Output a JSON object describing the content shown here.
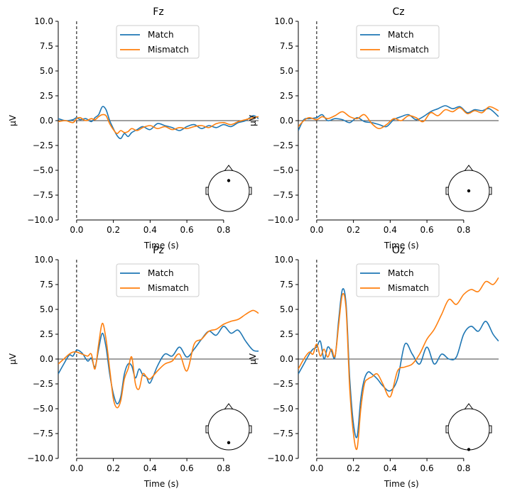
{
  "chart_data": [
    {
      "type": "line",
      "title": "Fz",
      "xlabel": "Time (s)",
      "ylabel": "µV",
      "xlim": [
        -0.1,
        0.99
      ],
      "ylim": [
        -10,
        10
      ],
      "xticks": [
        0.0,
        0.2,
        0.4,
        0.6,
        0.8
      ],
      "xtick_labels": [
        "0.0",
        "0.2",
        "0.4",
        "0.6",
        "0.8"
      ],
      "yticks": [
        10,
        7.5,
        5,
        2.5,
        0,
        -2.5,
        -5,
        -7.5,
        -10
      ],
      "ytick_labels": [
        "10.0",
        "7.5",
        "5.0",
        "2.5",
        "0.0",
        "−2.5",
        "−5.0",
        "−7.5",
        "−10.0"
      ],
      "legend_position": "top-center",
      "sensor_position": "front",
      "series": [
        {
          "name": "Match",
          "color": "#1f77b4",
          "x": [
            -0.1,
            -0.06,
            -0.02,
            0.0,
            0.02,
            0.05,
            0.08,
            0.1,
            0.12,
            0.14,
            0.16,
            0.18,
            0.2,
            0.22,
            0.24,
            0.26,
            0.28,
            0.3,
            0.33,
            0.36,
            0.4,
            0.44,
            0.48,
            0.52,
            0.56,
            0.6,
            0.64,
            0.68,
            0.72,
            0.76,
            0.8,
            0.84,
            0.88,
            0.92,
            0.96,
            0.99
          ],
          "y": [
            0.2,
            0.0,
            0.1,
            0.3,
            0.1,
            0.2,
            -0.1,
            0.3,
            0.6,
            1.4,
            1.1,
            0.0,
            -0.8,
            -1.5,
            -1.8,
            -1.3,
            -1.6,
            -1.2,
            -0.9,
            -0.6,
            -0.9,
            -0.3,
            -0.5,
            -0.7,
            -1.0,
            -0.6,
            -0.4,
            -0.8,
            -0.5,
            -0.7,
            -0.4,
            -0.6,
            -0.2,
            0.0,
            0.5,
            0.2
          ]
        },
        {
          "name": "Mismatch",
          "color": "#ff7f0e",
          "x": [
            -0.1,
            -0.06,
            -0.02,
            0.0,
            0.02,
            0.05,
            0.08,
            0.1,
            0.12,
            0.14,
            0.16,
            0.18,
            0.2,
            0.22,
            0.24,
            0.26,
            0.28,
            0.3,
            0.33,
            0.36,
            0.4,
            0.44,
            0.48,
            0.52,
            0.56,
            0.6,
            0.64,
            0.68,
            0.72,
            0.76,
            0.8,
            0.84,
            0.88,
            0.92,
            0.96,
            0.99
          ],
          "y": [
            -0.1,
            0.0,
            -0.2,
            0.2,
            0.3,
            0.0,
            0.2,
            0.1,
            0.4,
            0.6,
            0.5,
            -0.3,
            -0.9,
            -1.3,
            -1.0,
            -1.2,
            -1.1,
            -0.8,
            -1.0,
            -0.7,
            -0.5,
            -0.8,
            -0.6,
            -0.9,
            -0.7,
            -0.8,
            -0.6,
            -0.5,
            -0.7,
            -0.3,
            -0.2,
            -0.4,
            -0.1,
            0.1,
            0.3,
            0.4
          ]
        }
      ]
    },
    {
      "type": "line",
      "title": "Cz",
      "xlabel": "Time (s)",
      "ylabel": "µV",
      "xlim": [
        -0.1,
        0.99
      ],
      "ylim": [
        -10,
        10
      ],
      "xticks": [
        0.0,
        0.2,
        0.4,
        0.6,
        0.8
      ],
      "xtick_labels": [
        "0.0",
        "0.2",
        "0.4",
        "0.6",
        "0.8"
      ],
      "yticks": [
        10,
        7.5,
        5,
        2.5,
        0,
        -2.5,
        -5,
        -7.5,
        -10
      ],
      "ytick_labels": [
        "10.0",
        "7.5",
        "5.0",
        "2.5",
        "0.0",
        "−2.5",
        "−5.0",
        "−7.5",
        "−10.0"
      ],
      "legend_position": "top-center",
      "sensor_position": "center",
      "series": [
        {
          "name": "Match",
          "color": "#1f77b4",
          "x": [
            -0.1,
            -0.07,
            -0.04,
            0.0,
            0.03,
            0.06,
            0.1,
            0.14,
            0.18,
            0.22,
            0.26,
            0.3,
            0.34,
            0.38,
            0.42,
            0.46,
            0.5,
            0.54,
            0.58,
            0.62,
            0.66,
            0.7,
            0.74,
            0.78,
            0.82,
            0.86,
            0.9,
            0.94,
            0.99
          ],
          "y": [
            -1.0,
            0.1,
            0.2,
            0.3,
            0.6,
            0.0,
            0.2,
            0.1,
            -0.2,
            0.3,
            -0.1,
            -0.2,
            -0.4,
            -0.6,
            0.1,
            0.4,
            0.6,
            0.1,
            0.4,
            0.9,
            1.2,
            1.5,
            1.2,
            1.4,
            0.8,
            1.1,
            1.0,
            1.2,
            0.4
          ]
        },
        {
          "name": "Mismatch",
          "color": "#ff7f0e",
          "x": [
            -0.1,
            -0.07,
            -0.04,
            0.0,
            0.03,
            0.06,
            0.1,
            0.14,
            0.18,
            0.22,
            0.26,
            0.3,
            0.34,
            0.38,
            0.42,
            0.46,
            0.5,
            0.54,
            0.58,
            0.62,
            0.66,
            0.7,
            0.74,
            0.78,
            0.82,
            0.86,
            0.9,
            0.94,
            0.99
          ],
          "y": [
            -0.6,
            0.0,
            0.3,
            0.1,
            0.4,
            0.2,
            0.5,
            0.9,
            0.4,
            0.2,
            0.6,
            -0.3,
            -0.8,
            -0.4,
            0.2,
            0.0,
            0.5,
            0.3,
            -0.1,
            0.8,
            0.5,
            1.1,
            0.9,
            1.3,
            0.7,
            1.0,
            0.8,
            1.4,
            1.0
          ]
        }
      ]
    },
    {
      "type": "line",
      "title": "Pz",
      "xlabel": "Time (s)",
      "ylabel": "µV",
      "xlim": [
        -0.1,
        0.99
      ],
      "ylim": [
        -10,
        10
      ],
      "xticks": [
        0.0,
        0.2,
        0.4,
        0.6,
        0.8
      ],
      "xtick_labels": [
        "0.0",
        "0.2",
        "0.4",
        "0.6",
        "0.8"
      ],
      "yticks": [
        10,
        7.5,
        5,
        2.5,
        0,
        -2.5,
        -5,
        -7.5,
        -10
      ],
      "ytick_labels": [
        "10.0",
        "7.5",
        "5.0",
        "2.5",
        "0.0",
        "−2.5",
        "−5.0",
        "−7.5",
        "−10.0"
      ],
      "legend_position": "top-center",
      "sensor_position": "back",
      "series": [
        {
          "name": "Match",
          "color": "#1f77b4",
          "x": [
            -0.1,
            -0.07,
            -0.04,
            -0.02,
            0.0,
            0.03,
            0.06,
            0.08,
            0.1,
            0.12,
            0.14,
            0.16,
            0.18,
            0.2,
            0.22,
            0.24,
            0.26,
            0.28,
            0.3,
            0.32,
            0.34,
            0.36,
            0.38,
            0.4,
            0.44,
            0.48,
            0.52,
            0.56,
            0.6,
            0.64,
            0.68,
            0.72,
            0.76,
            0.8,
            0.84,
            0.88,
            0.92,
            0.96,
            0.99
          ],
          "y": [
            -1.5,
            -0.5,
            0.4,
            0.3,
            0.9,
            0.6,
            -0.2,
            0.1,
            -0.8,
            1.0,
            2.6,
            1.2,
            -1.5,
            -3.5,
            -4.5,
            -3.8,
            -1.5,
            -0.5,
            -0.7,
            -1.9,
            -1.0,
            -1.6,
            -1.8,
            -2.4,
            -0.7,
            0.5,
            0.3,
            1.2,
            0.2,
            1.0,
            2.0,
            2.8,
            2.4,
            3.3,
            2.6,
            2.9,
            1.8,
            0.9,
            0.8
          ]
        },
        {
          "name": "Mismatch",
          "color": "#ff7f0e",
          "x": [
            -0.1,
            -0.07,
            -0.04,
            -0.02,
            0.0,
            0.03,
            0.06,
            0.08,
            0.1,
            0.12,
            0.14,
            0.16,
            0.18,
            0.2,
            0.22,
            0.24,
            0.26,
            0.28,
            0.3,
            0.32,
            0.34,
            0.36,
            0.38,
            0.4,
            0.44,
            0.48,
            0.52,
            0.56,
            0.6,
            0.64,
            0.68,
            0.72,
            0.76,
            0.8,
            0.84,
            0.88,
            0.92,
            0.96,
            0.99
          ],
          "y": [
            -0.5,
            0.0,
            0.5,
            0.7,
            0.7,
            0.5,
            0.3,
            0.5,
            -1.0,
            1.5,
            3.6,
            2.0,
            -1.0,
            -4.0,
            -4.9,
            -4.2,
            -2.0,
            -1.0,
            0.2,
            -2.5,
            -3.0,
            -1.5,
            -1.8,
            -2.0,
            -1.2,
            -0.5,
            -0.2,
            0.5,
            -1.2,
            1.5,
            2.0,
            2.8,
            3.0,
            3.5,
            3.8,
            4.0,
            4.5,
            4.9,
            4.6
          ]
        }
      ]
    },
    {
      "type": "line",
      "title": "Oz",
      "xlabel": "Time (s)",
      "ylabel": "µV",
      "xlim": [
        -0.1,
        0.99
      ],
      "ylim": [
        -10,
        10
      ],
      "xticks": [
        0.0,
        0.2,
        0.4,
        0.6,
        0.8
      ],
      "xtick_labels": [
        "0.0",
        "0.2",
        "0.4",
        "0.6",
        "0.8"
      ],
      "yticks": [
        10,
        7.5,
        5,
        2.5,
        0,
        -2.5,
        -5,
        -7.5,
        -10
      ],
      "ytick_labels": [
        "10.0",
        "7.5",
        "5.0",
        "2.5",
        "0.0",
        "−2.5",
        "−5.0",
        "−7.5",
        "−10.0"
      ],
      "legend_position": "top-center",
      "sensor_position": "occipital",
      "series": [
        {
          "name": "Match",
          "color": "#1f77b4",
          "x": [
            -0.1,
            -0.07,
            -0.04,
            -0.02,
            0.0,
            0.02,
            0.04,
            0.06,
            0.08,
            0.1,
            0.12,
            0.14,
            0.16,
            0.18,
            0.2,
            0.22,
            0.24,
            0.26,
            0.28,
            0.3,
            0.33,
            0.36,
            0.4,
            0.44,
            0.48,
            0.52,
            0.56,
            0.6,
            0.64,
            0.68,
            0.72,
            0.76,
            0.8,
            0.84,
            0.88,
            0.92,
            0.96,
            0.99
          ],
          "y": [
            -1.5,
            -0.5,
            0.5,
            1.0,
            1.2,
            1.8,
            0.0,
            1.2,
            0.8,
            0.2,
            4.0,
            7.0,
            5.5,
            -2.0,
            -6.5,
            -7.8,
            -4.0,
            -2.0,
            -1.3,
            -1.5,
            -2.0,
            -2.7,
            -3.2,
            -2.0,
            1.5,
            0.5,
            -0.5,
            1.2,
            -0.5,
            0.5,
            0.0,
            0.2,
            2.5,
            3.3,
            2.8,
            3.8,
            2.5,
            1.8
          ]
        },
        {
          "name": "Mismatch",
          "color": "#ff7f0e",
          "x": [
            -0.1,
            -0.07,
            -0.04,
            -0.02,
            0.0,
            0.02,
            0.04,
            0.06,
            0.08,
            0.1,
            0.12,
            0.14,
            0.16,
            0.18,
            0.2,
            0.22,
            0.24,
            0.26,
            0.28,
            0.3,
            0.33,
            0.36,
            0.4,
            0.44,
            0.48,
            0.52,
            0.56,
            0.6,
            0.64,
            0.68,
            0.72,
            0.76,
            0.8,
            0.84,
            0.88,
            0.92,
            0.96,
            0.99
          ],
          "y": [
            -1.0,
            0.0,
            0.7,
            0.5,
            1.5,
            0.3,
            1.0,
            0.2,
            1.0,
            0.3,
            3.5,
            6.5,
            5.0,
            -3.0,
            -7.5,
            -9.0,
            -5.0,
            -2.5,
            -2.0,
            -1.8,
            -1.5,
            -2.5,
            -3.8,
            -1.2,
            -0.8,
            -0.5,
            0.5,
            2.0,
            3.0,
            4.5,
            6.0,
            5.5,
            6.5,
            7.0,
            6.8,
            7.8,
            7.5,
            8.2
          ]
        }
      ]
    }
  ]
}
